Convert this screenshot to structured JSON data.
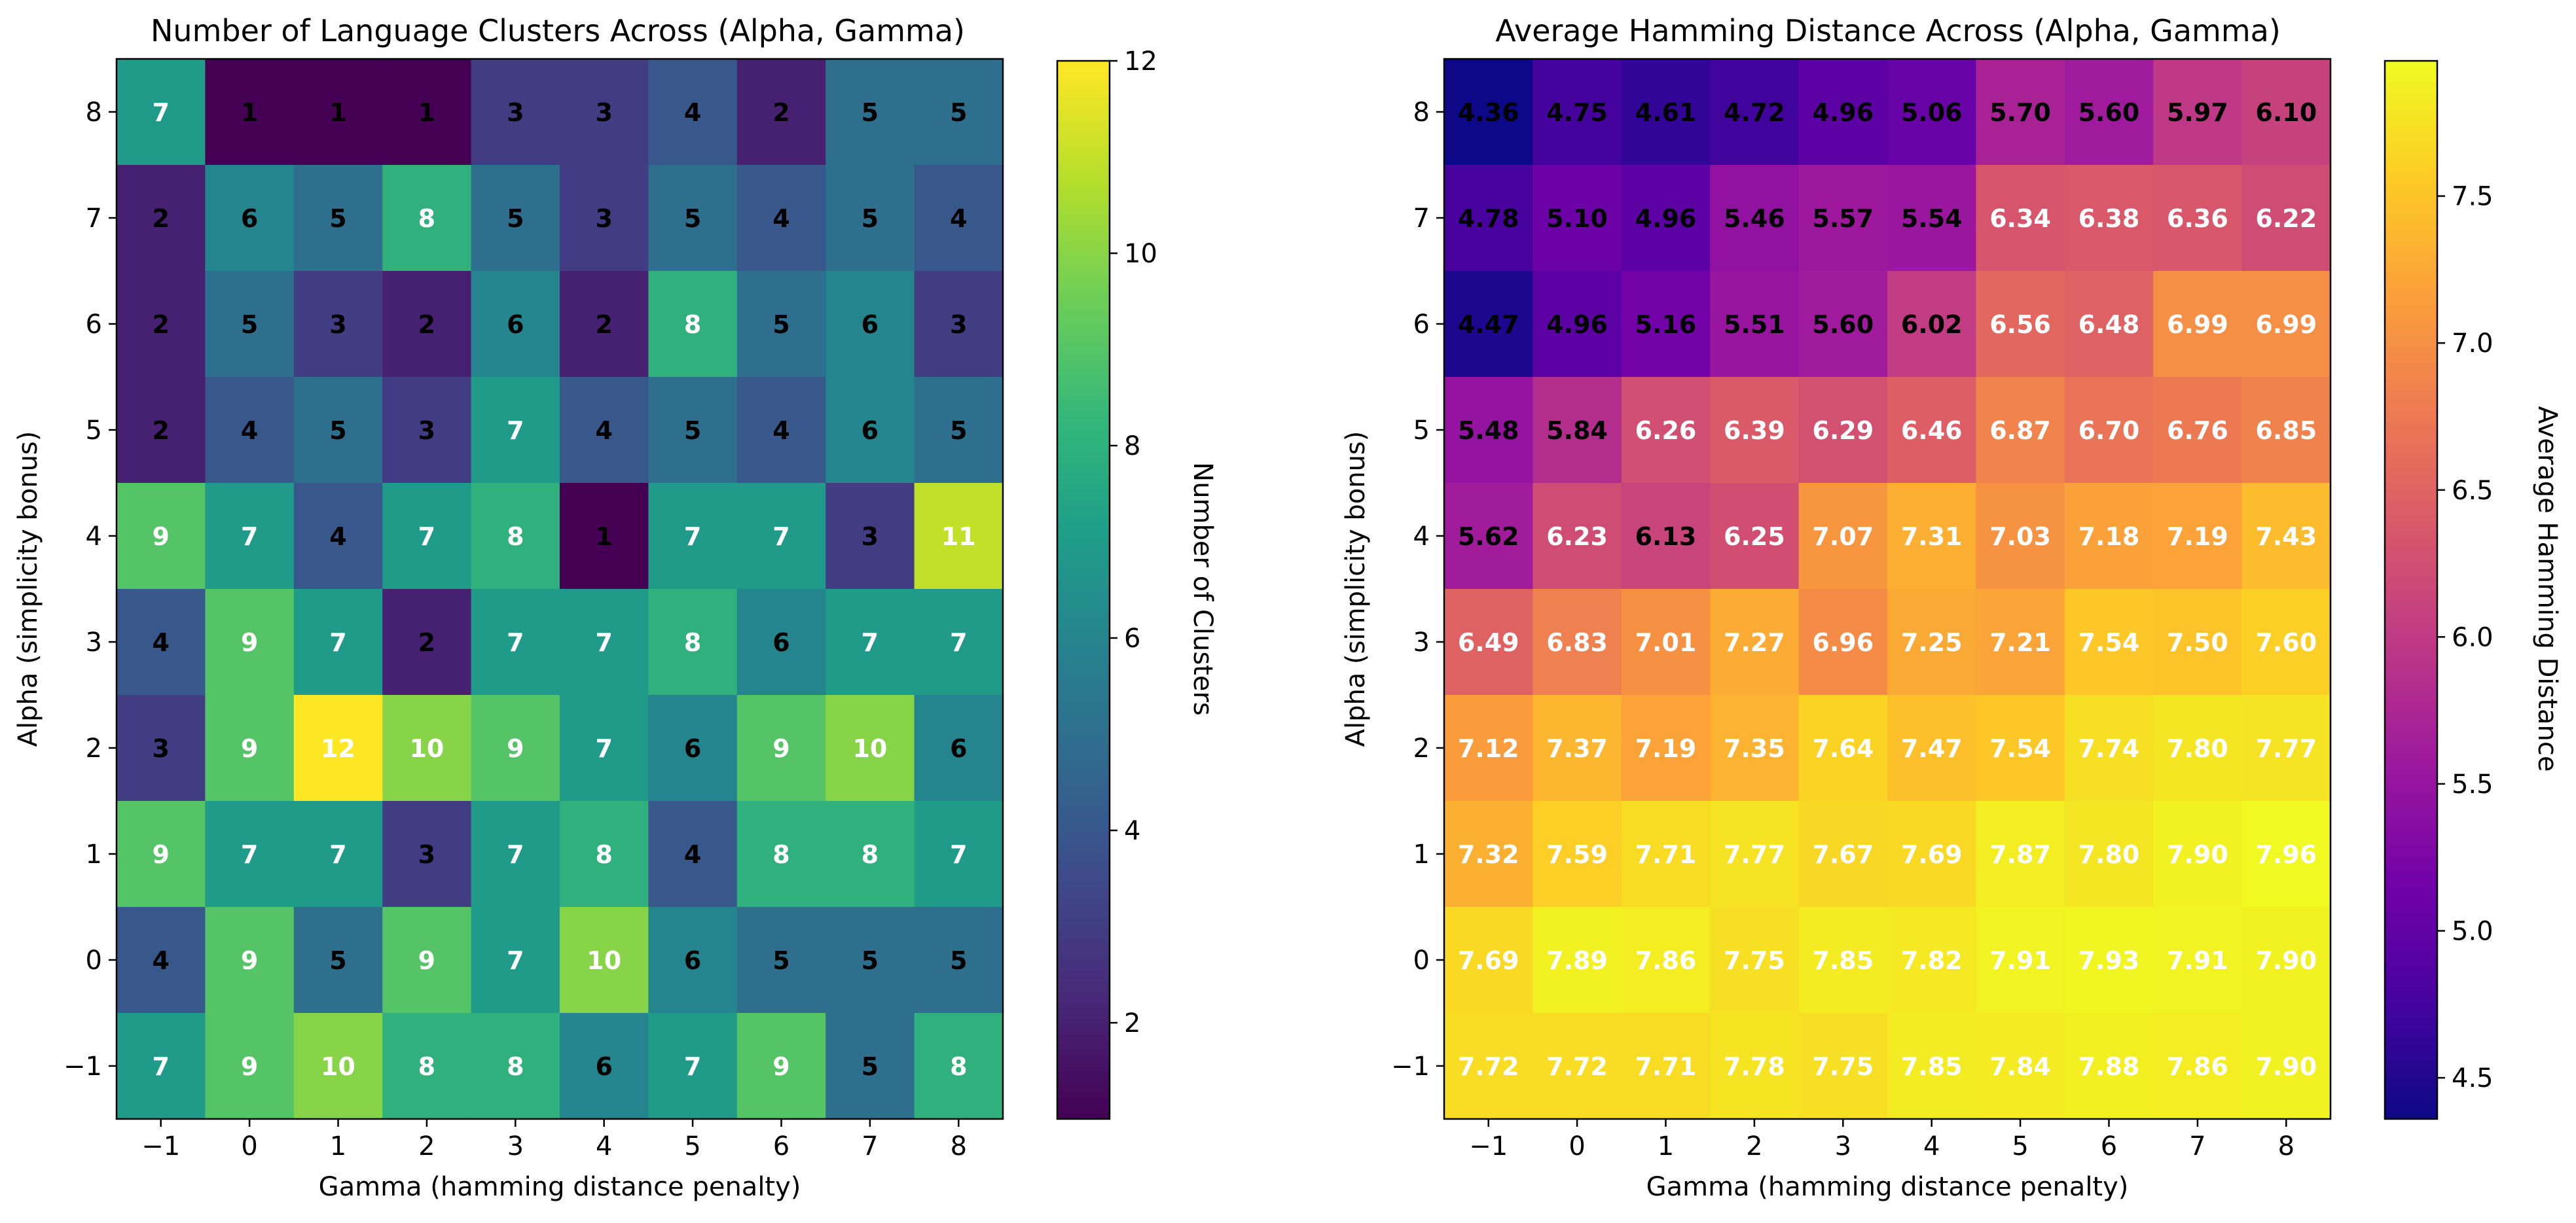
{
  "chart_data": [
    {
      "type": "heatmap",
      "title": "Number of Language Clusters Across (Alpha, Gamma)",
      "xlabel": "Gamma (hamming distance penalty)",
      "ylabel": "Alpha (simplicity bonus)",
      "x": [
        "−1",
        "0",
        "1",
        "2",
        "3",
        "4",
        "5",
        "6",
        "7",
        "8"
      ],
      "y": [
        "8",
        "7",
        "6",
        "5",
        "4",
        "3",
        "2",
        "1",
        "0",
        "−1"
      ],
      "values": [
        [
          7,
          1,
          1,
          1,
          3,
          3,
          4,
          2,
          5,
          5
        ],
        [
          2,
          6,
          5,
          8,
          5,
          3,
          5,
          4,
          5,
          4
        ],
        [
          2,
          5,
          3,
          2,
          6,
          2,
          8,
          5,
          6,
          3
        ],
        [
          2,
          4,
          5,
          3,
          7,
          4,
          5,
          4,
          6,
          5
        ],
        [
          9,
          7,
          4,
          7,
          8,
          1,
          7,
          7,
          3,
          11
        ],
        [
          4,
          9,
          7,
          2,
          7,
          7,
          8,
          6,
          7,
          7
        ],
        [
          3,
          9,
          12,
          10,
          9,
          7,
          6,
          9,
          10,
          6
        ],
        [
          9,
          7,
          7,
          3,
          7,
          8,
          4,
          8,
          8,
          7
        ],
        [
          4,
          9,
          5,
          9,
          7,
          10,
          6,
          5,
          5,
          5
        ],
        [
          7,
          9,
          10,
          8,
          8,
          6,
          7,
          9,
          5,
          8
        ]
      ],
      "value_format": "int",
      "colormap": "viridis",
      "vmin": 1,
      "vmax": 12,
      "colorbar_label": "Number of Clusters",
      "colorbar_ticks": [
        2,
        4,
        6,
        8,
        10,
        12
      ],
      "colorbar_tick_labels": [
        "2",
        "4",
        "6",
        "8",
        "10",
        "12"
      ]
    },
    {
      "type": "heatmap",
      "title": "Average Hamming Distance Across (Alpha, Gamma)",
      "xlabel": "Gamma (hamming distance penalty)",
      "ylabel": "Alpha (simplicity bonus)",
      "x": [
        "−1",
        "0",
        "1",
        "2",
        "3",
        "4",
        "5",
        "6",
        "7",
        "8"
      ],
      "y": [
        "8",
        "7",
        "6",
        "5",
        "4",
        "3",
        "2",
        "1",
        "0",
        "−1"
      ],
      "values": [
        [
          4.36,
          4.75,
          4.61,
          4.72,
          4.96,
          5.06,
          5.7,
          5.6,
          5.97,
          6.1
        ],
        [
          4.78,
          5.1,
          4.96,
          5.46,
          5.57,
          5.54,
          6.34,
          6.38,
          6.36,
          6.22
        ],
        [
          4.47,
          4.96,
          5.16,
          5.51,
          5.6,
          6.02,
          6.56,
          6.48,
          6.99,
          6.99
        ],
        [
          5.48,
          5.84,
          6.26,
          6.39,
          6.29,
          6.46,
          6.87,
          6.7,
          6.76,
          6.85
        ],
        [
          5.62,
          6.23,
          6.13,
          6.25,
          7.07,
          7.31,
          7.03,
          7.18,
          7.19,
          7.43
        ],
        [
          6.49,
          6.83,
          7.01,
          7.27,
          6.96,
          7.25,
          7.21,
          7.54,
          7.5,
          7.6
        ],
        [
          7.12,
          7.37,
          7.19,
          7.35,
          7.64,
          7.47,
          7.54,
          7.74,
          7.8,
          7.77
        ],
        [
          7.32,
          7.59,
          7.71,
          7.77,
          7.67,
          7.69,
          7.87,
          7.8,
          7.9,
          7.96
        ],
        [
          7.69,
          7.89,
          7.86,
          7.75,
          7.85,
          7.82,
          7.91,
          7.93,
          7.91,
          7.9
        ],
        [
          7.72,
          7.72,
          7.71,
          7.78,
          7.75,
          7.85,
          7.84,
          7.88,
          7.86,
          7.9
        ]
      ],
      "value_format": "2dp",
      "colormap": "plasma",
      "vmin": 4.36,
      "vmax": 7.96,
      "colorbar_label": "Average Hamming Distance",
      "colorbar_ticks": [
        4.5,
        5.0,
        5.5,
        6.0,
        6.5,
        7.0,
        7.5
      ],
      "colorbar_tick_labels": [
        "4.5",
        "5.0",
        "5.5",
        "6.0",
        "6.5",
        "7.0",
        "7.5"
      ]
    }
  ]
}
